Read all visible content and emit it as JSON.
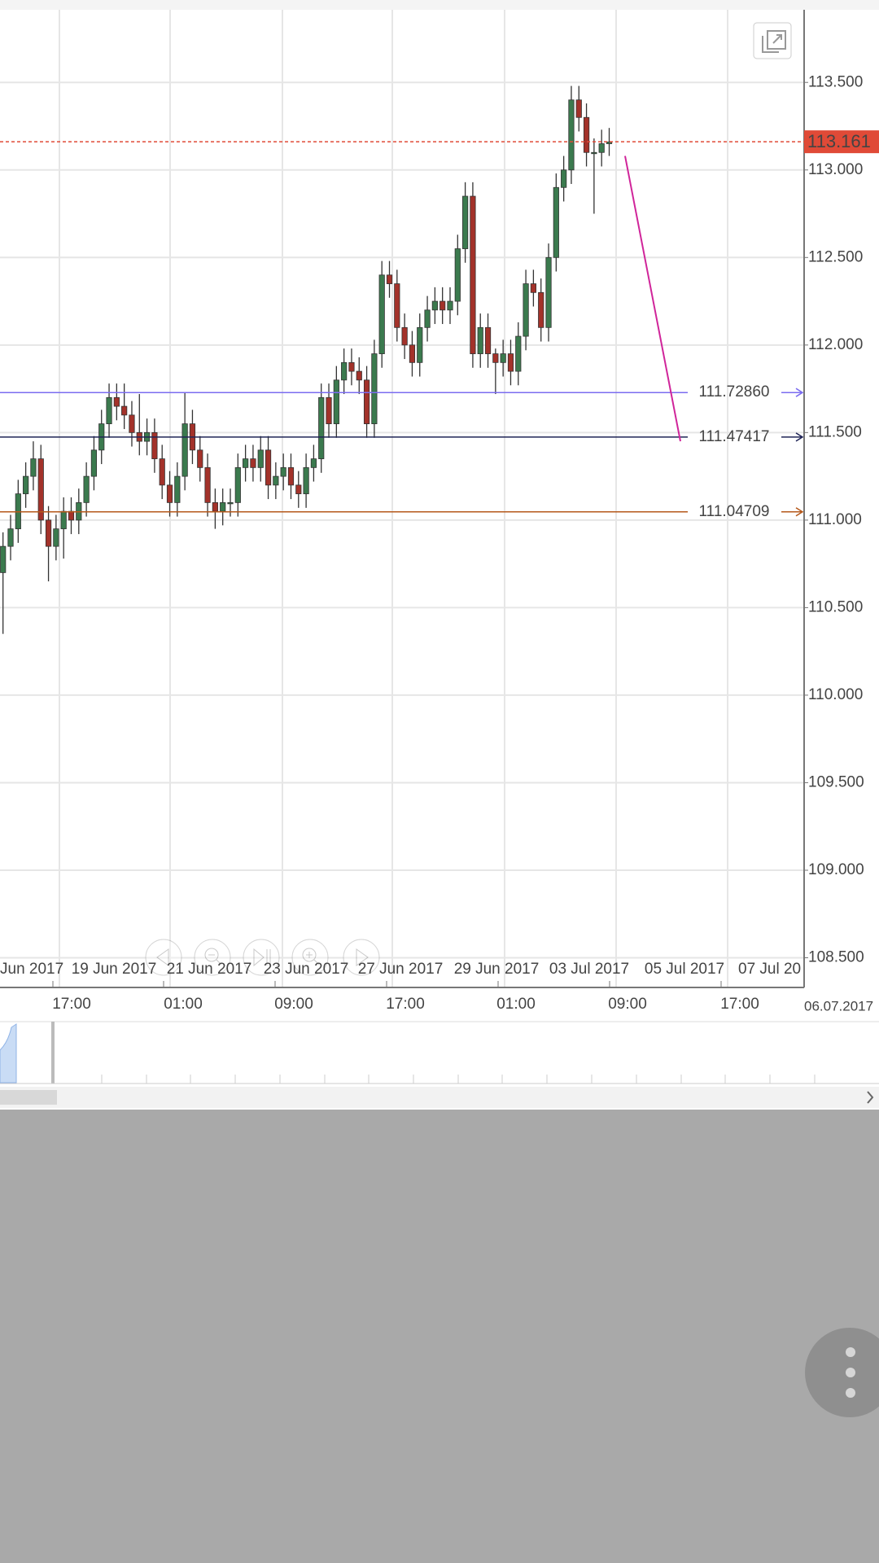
{
  "chart_data": {
    "type": "candlestick",
    "open": [
      110.7,
      110.85,
      110.95,
      111.15,
      111.25,
      111.35,
      111.0,
      110.85,
      110.95,
      111.05,
      111.0,
      111.1,
      111.25,
      111.4,
      111.55,
      111.7,
      111.65,
      111.6,
      111.5,
      111.45,
      111.5,
      111.35,
      111.2,
      111.1,
      111.25,
      111.55,
      111.4,
      111.3,
      111.1,
      111.05,
      111.1,
      111.1,
      111.3,
      111.35,
      111.3,
      111.4,
      111.2,
      111.25,
      111.3,
      111.2,
      111.15,
      111.3,
      111.35,
      111.7,
      111.55,
      111.8,
      111.9,
      111.85,
      111.8,
      111.55,
      111.95,
      112.4,
      112.35,
      112.1,
      112.0,
      111.9,
      112.1,
      112.2,
      112.25,
      112.2,
      112.25,
      112.55,
      112.85,
      111.95,
      112.1,
      111.95,
      111.9,
      111.95,
      111.85,
      112.05,
      112.35,
      112.3,
      112.1,
      112.5,
      112.9,
      113.0,
      113.4,
      113.3,
      113.1,
      113.1,
      113.15
    ],
    "high": [
      110.93,
      111.03,
      111.23,
      111.33,
      111.45,
      111.43,
      111.08,
      111.03,
      111.13,
      111.13,
      111.18,
      111.33,
      111.48,
      111.63,
      111.78,
      111.78,
      111.78,
      111.68,
      111.72,
      111.58,
      111.58,
      111.43,
      111.28,
      111.33,
      111.73,
      111.63,
      111.48,
      111.38,
      111.18,
      111.18,
      111.18,
      111.38,
      111.43,
      111.43,
      111.48,
      111.48,
      111.33,
      111.38,
      111.38,
      111.28,
      111.38,
      111.43,
      111.78,
      111.78,
      111.88,
      111.98,
      111.98,
      111.93,
      111.88,
      112.03,
      112.48,
      112.48,
      112.43,
      112.18,
      112.08,
      112.18,
      112.28,
      112.33,
      112.33,
      112.33,
      112.63,
      112.93,
      112.93,
      112.18,
      112.18,
      111.98,
      112.03,
      112.03,
      112.13,
      112.43,
      112.43,
      112.38,
      112.58,
      112.98,
      113.08,
      113.48,
      113.48,
      113.38,
      113.18,
      113.23,
      113.24
    ],
    "low": [
      110.35,
      110.77,
      110.87,
      111.07,
      111.17,
      110.92,
      110.65,
      110.77,
      110.78,
      110.92,
      110.92,
      111.02,
      111.17,
      111.32,
      111.47,
      111.57,
      111.52,
      111.42,
      111.37,
      111.37,
      111.27,
      111.12,
      111.02,
      111.02,
      111.17,
      111.32,
      111.22,
      111.02,
      110.95,
      110.97,
      111.02,
      111.02,
      111.22,
      111.22,
      111.22,
      111.12,
      111.12,
      111.17,
      111.12,
      111.07,
      111.07,
      111.22,
      111.27,
      111.47,
      111.47,
      111.72,
      111.77,
      111.72,
      111.47,
      111.47,
      111.87,
      112.27,
      112.02,
      111.92,
      111.82,
      111.82,
      112.02,
      112.12,
      112.12,
      112.12,
      112.17,
      112.47,
      111.87,
      111.87,
      111.87,
      111.72,
      111.82,
      111.77,
      111.77,
      111.97,
      112.22,
      112.02,
      112.02,
      112.42,
      112.82,
      112.92,
      113.22,
      113.02,
      112.75,
      113.02,
      113.08
    ],
    "close": [
      110.85,
      110.95,
      111.15,
      111.25,
      111.35,
      111.0,
      110.85,
      110.95,
      111.05,
      111.0,
      111.1,
      111.25,
      111.4,
      111.55,
      111.7,
      111.65,
      111.6,
      111.5,
      111.45,
      111.5,
      111.35,
      111.2,
      111.1,
      111.25,
      111.55,
      111.4,
      111.3,
      111.1,
      111.05,
      111.1,
      111.1,
      111.3,
      111.35,
      111.3,
      111.4,
      111.2,
      111.25,
      111.3,
      111.2,
      111.15,
      111.3,
      111.35,
      111.7,
      111.55,
      111.8,
      111.9,
      111.85,
      111.8,
      111.55,
      111.95,
      112.4,
      112.35,
      112.1,
      112.0,
      111.9,
      112.1,
      112.2,
      112.25,
      112.2,
      112.25,
      112.55,
      112.85,
      111.95,
      112.1,
      111.95,
      111.9,
      111.95,
      111.85,
      112.05,
      112.35,
      112.3,
      112.1,
      112.5,
      112.9,
      113.0,
      113.4,
      113.3,
      113.1,
      113.1,
      113.15,
      113.16
    ],
    "up_color": "#3b7a4e",
    "down_color": "#a3322a",
    "ylim": [
      108.335,
      113.915
    ],
    "yticks": [
      {
        "value": 108.5,
        "label": "108.500"
      },
      {
        "value": 109,
        "label": "109.000"
      },
      {
        "value": 109.5,
        "label": "109.500"
      },
      {
        "value": 110,
        "label": "110.000"
      },
      {
        "value": 110.5,
        "label": "110.500"
      },
      {
        "value": 111,
        "label": "111.000"
      },
      {
        "value": 111.5,
        "label": "111.500"
      },
      {
        "value": 112,
        "label": "112.000"
      },
      {
        "value": 112.5,
        "label": "112.500"
      },
      {
        "value": 113,
        "label": "113.000"
      },
      {
        "value": 113.5,
        "label": "113.500"
      }
    ],
    "grid": true,
    "date_labels": [
      "Jun 2017",
      "19 Jun 2017",
      "21 Jun 2017",
      "23 Jun 2017",
      "27 Jun 2017",
      "29 Jun 2017",
      "03 Jul 2017",
      "05 Jul 2017",
      "07 Jul 20"
    ],
    "time_labels": [
      "17:00",
      "01:00",
      "09:00",
      "17:00",
      "01:00",
      "09:00",
      "17:00"
    ],
    "end_date": "06.07.2017",
    "last_price": {
      "value": 113.161,
      "color": "#e04a37"
    },
    "hlines": [
      {
        "value": 111.7286,
        "label": "111.72860",
        "color": "#7b6cf0"
      },
      {
        "value": 111.47417,
        "label": "111.47417",
        "color": "#1f2456"
      },
      {
        "value": 111.04709,
        "label": "111.04709",
        "color": "#b5581a"
      }
    ],
    "trendline": {
      "values": [
        113.08,
        111.45
      ],
      "color": "#d0259a"
    }
  }
}
